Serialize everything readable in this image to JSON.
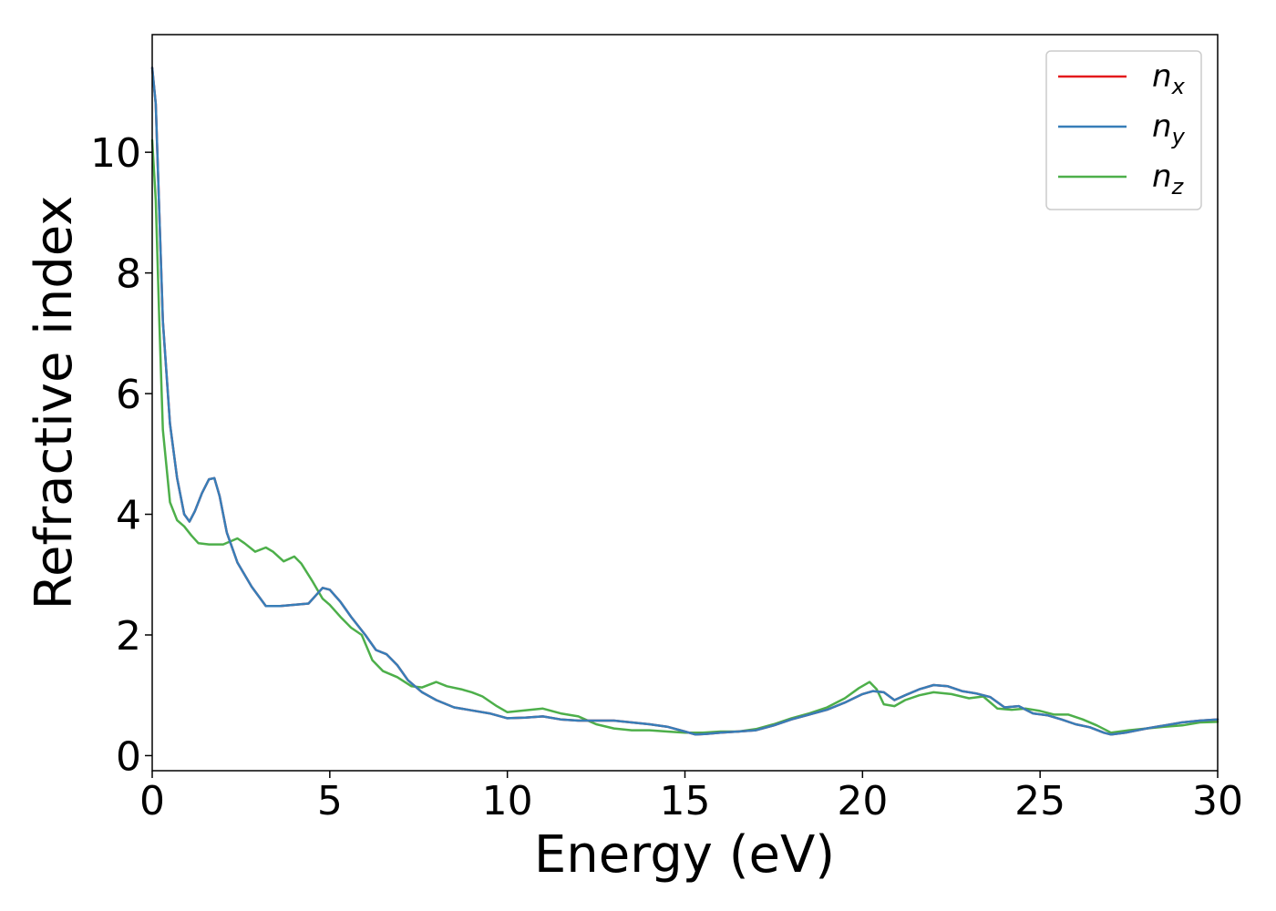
{
  "chart_data": {
    "type": "line",
    "xlabel": "Energy (eV)",
    "ylabel": "Refractive index",
    "xlim": [
      0,
      30
    ],
    "ylim": [
      -0.25,
      11.95
    ],
    "xticks": [
      0,
      5,
      10,
      15,
      20,
      25,
      30
    ],
    "xtick_labels": [
      "0",
      "5",
      "10",
      "15",
      "20",
      "25",
      "30"
    ],
    "yticks": [
      0,
      2,
      4,
      6,
      8,
      10
    ],
    "ytick_labels": [
      "0",
      "2",
      "4",
      "6",
      "8",
      "10"
    ],
    "grid": false,
    "legend_position": "top-right",
    "series": [
      {
        "name": "n",
        "subscript": "x",
        "color": "#e41a1c",
        "x": [
          0,
          0.1,
          0.2,
          0.3,
          0.5,
          0.7,
          0.9,
          1.05,
          1.2,
          1.4,
          1.6,
          1.75,
          1.9,
          2.1,
          2.4,
          2.8,
          3.2,
          3.6,
          4.0,
          4.4,
          4.6,
          4.8,
          5.0,
          5.3,
          5.6,
          6.0,
          6.3,
          6.6,
          6.9,
          7.2,
          7.6,
          8.0,
          8.5,
          9.0,
          9.5,
          10.0,
          10.5,
          11.0,
          11.5,
          12.0,
          12.5,
          13.0,
          13.5,
          14.0,
          14.5,
          15.0,
          15.3,
          15.6,
          16.0,
          16.5,
          17.0,
          17.5,
          18.0,
          18.5,
          19.0,
          19.5,
          20.0,
          20.3,
          20.6,
          20.9,
          21.2,
          21.6,
          22.0,
          22.4,
          22.8,
          23.2,
          23.6,
          24.0,
          24.4,
          24.8,
          25.2,
          25.6,
          26.0,
          26.4,
          26.8,
          27.0,
          27.4,
          28.0,
          28.5,
          29.0,
          29.5,
          30.0
        ],
        "y": [
          11.4,
          10.8,
          9.0,
          7.2,
          5.5,
          4.6,
          4.0,
          3.88,
          4.05,
          4.35,
          4.58,
          4.6,
          4.3,
          3.7,
          3.2,
          2.8,
          2.48,
          2.48,
          2.5,
          2.52,
          2.65,
          2.78,
          2.75,
          2.55,
          2.3,
          2.0,
          1.75,
          1.68,
          1.5,
          1.25,
          1.05,
          0.92,
          0.8,
          0.75,
          0.7,
          0.62,
          0.63,
          0.65,
          0.6,
          0.58,
          0.58,
          0.58,
          0.55,
          0.52,
          0.48,
          0.4,
          0.35,
          0.36,
          0.38,
          0.4,
          0.42,
          0.5,
          0.6,
          0.68,
          0.76,
          0.88,
          1.02,
          1.07,
          1.05,
          0.92,
          1.0,
          1.1,
          1.17,
          1.15,
          1.07,
          1.03,
          0.97,
          0.8,
          0.82,
          0.7,
          0.67,
          0.6,
          0.52,
          0.47,
          0.38,
          0.35,
          0.38,
          0.45,
          0.5,
          0.55,
          0.58,
          0.6
        ]
      },
      {
        "name": "n",
        "subscript": "y",
        "color": "#377eb8",
        "x": [
          0,
          0.1,
          0.2,
          0.3,
          0.5,
          0.7,
          0.9,
          1.05,
          1.2,
          1.4,
          1.6,
          1.75,
          1.9,
          2.1,
          2.4,
          2.8,
          3.2,
          3.6,
          4.0,
          4.4,
          4.6,
          4.8,
          5.0,
          5.3,
          5.6,
          6.0,
          6.3,
          6.6,
          6.9,
          7.2,
          7.6,
          8.0,
          8.5,
          9.0,
          9.5,
          10.0,
          10.5,
          11.0,
          11.5,
          12.0,
          12.5,
          13.0,
          13.5,
          14.0,
          14.5,
          15.0,
          15.3,
          15.6,
          16.0,
          16.5,
          17.0,
          17.5,
          18.0,
          18.5,
          19.0,
          19.5,
          20.0,
          20.3,
          20.6,
          20.9,
          21.2,
          21.6,
          22.0,
          22.4,
          22.8,
          23.2,
          23.6,
          24.0,
          24.4,
          24.8,
          25.2,
          25.6,
          26.0,
          26.4,
          26.8,
          27.0,
          27.4,
          28.0,
          28.5,
          29.0,
          29.5,
          30.0
        ],
        "y": [
          11.4,
          10.8,
          9.0,
          7.2,
          5.5,
          4.6,
          4.0,
          3.88,
          4.05,
          4.35,
          4.58,
          4.6,
          4.3,
          3.7,
          3.2,
          2.8,
          2.48,
          2.48,
          2.5,
          2.52,
          2.65,
          2.78,
          2.75,
          2.55,
          2.3,
          2.0,
          1.75,
          1.68,
          1.5,
          1.25,
          1.05,
          0.92,
          0.8,
          0.75,
          0.7,
          0.62,
          0.63,
          0.65,
          0.6,
          0.58,
          0.58,
          0.58,
          0.55,
          0.52,
          0.48,
          0.4,
          0.35,
          0.36,
          0.38,
          0.4,
          0.42,
          0.5,
          0.6,
          0.68,
          0.76,
          0.88,
          1.02,
          1.07,
          1.05,
          0.92,
          1.0,
          1.1,
          1.17,
          1.15,
          1.07,
          1.03,
          0.97,
          0.8,
          0.82,
          0.7,
          0.67,
          0.6,
          0.52,
          0.47,
          0.38,
          0.35,
          0.38,
          0.45,
          0.5,
          0.55,
          0.58,
          0.6
        ]
      },
      {
        "name": "n",
        "subscript": "z",
        "color": "#4daf4a",
        "x": [
          0,
          0.1,
          0.2,
          0.3,
          0.5,
          0.7,
          0.9,
          1.1,
          1.3,
          1.6,
          2.0,
          2.4,
          2.6,
          2.9,
          3.2,
          3.4,
          3.7,
          4.0,
          4.2,
          4.5,
          4.8,
          5.0,
          5.3,
          5.6,
          5.9,
          6.2,
          6.5,
          6.9,
          7.3,
          7.6,
          8.0,
          8.3,
          8.7,
          9.0,
          9.3,
          9.7,
          10.0,
          10.5,
          11.0,
          11.5,
          12.0,
          12.5,
          13.0,
          13.5,
          14.0,
          14.5,
          15.0,
          15.5,
          16.0,
          16.5,
          17.0,
          17.5,
          18.0,
          18.5,
          19.0,
          19.5,
          19.9,
          20.2,
          20.4,
          20.6,
          20.9,
          21.2,
          21.6,
          22.0,
          22.5,
          23.0,
          23.4,
          23.8,
          24.2,
          24.6,
          25.0,
          25.4,
          25.8,
          26.2,
          26.6,
          27.0,
          27.5,
          28.0,
          28.5,
          29.0,
          29.5,
          30.0
        ],
        "y": [
          10.2,
          9.2,
          7.2,
          5.4,
          4.2,
          3.9,
          3.8,
          3.65,
          3.52,
          3.5,
          3.5,
          3.6,
          3.52,
          3.38,
          3.45,
          3.38,
          3.22,
          3.3,
          3.18,
          2.9,
          2.6,
          2.5,
          2.3,
          2.12,
          2.0,
          1.58,
          1.4,
          1.3,
          1.15,
          1.13,
          1.22,
          1.15,
          1.1,
          1.05,
          0.98,
          0.82,
          0.72,
          0.75,
          0.78,
          0.7,
          0.65,
          0.52,
          0.45,
          0.42,
          0.42,
          0.4,
          0.38,
          0.38,
          0.4,
          0.4,
          0.44,
          0.52,
          0.62,
          0.7,
          0.8,
          0.95,
          1.12,
          1.22,
          1.1,
          0.85,
          0.82,
          0.92,
          1.0,
          1.05,
          1.02,
          0.95,
          0.98,
          0.78,
          0.76,
          0.78,
          0.74,
          0.68,
          0.68,
          0.6,
          0.5,
          0.38,
          0.42,
          0.45,
          0.48,
          0.5,
          0.55,
          0.56
        ]
      }
    ]
  }
}
